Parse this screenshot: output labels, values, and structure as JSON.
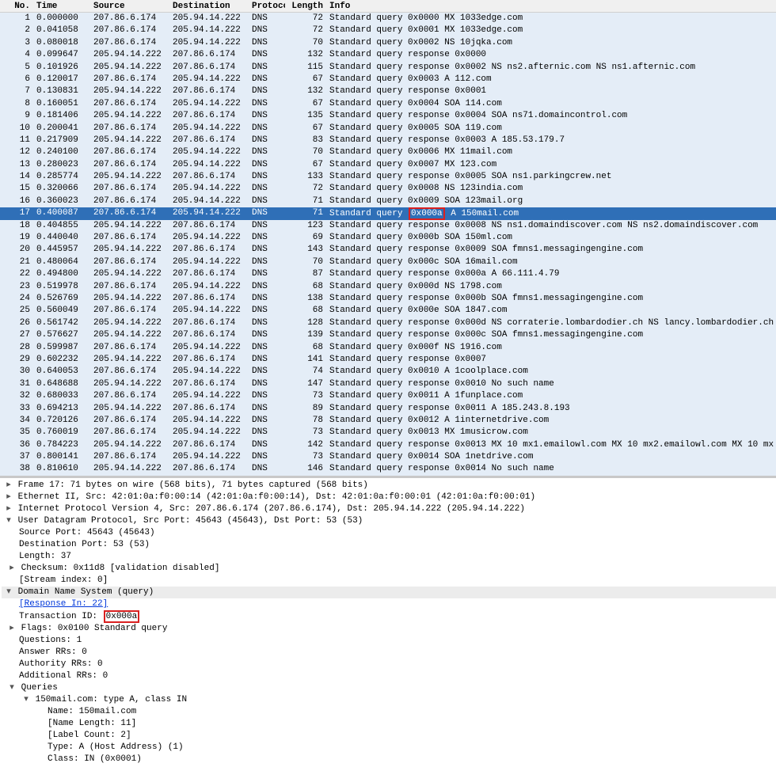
{
  "columns": {
    "no": "No.",
    "time": "Time",
    "src": "Source",
    "dst": "Destination",
    "proto": "Protocol",
    "len": "Length",
    "info": "Info"
  },
  "ip_a": "207.86.6.174",
  "ip_b": "205.94.14.222",
  "bg_colors": {
    "even": "#e4edf7",
    "odd": "#ffffff",
    "selected": "#2f6fb7",
    "selected_text": "#ffffff",
    "header": "#f0f0f0",
    "detail_header": "#ececec",
    "highlight_border": "#d92020",
    "link": "#0037da"
  },
  "packets": [
    {
      "no": 1,
      "time": "0.000000",
      "src": "A",
      "dst": "B",
      "proto": "DNS",
      "len": 72,
      "info": "Standard query 0x0000  MX 1033edge.com",
      "bg": 0
    },
    {
      "no": 2,
      "time": "0.041058",
      "src": "A",
      "dst": "B",
      "proto": "DNS",
      "len": 72,
      "info": "Standard query 0x0001  MX 1033edge.com",
      "bg": 0
    },
    {
      "no": 3,
      "time": "0.080018",
      "src": "A",
      "dst": "B",
      "proto": "DNS",
      "len": 70,
      "info": "Standard query 0x0002  NS 10jqka.com",
      "bg": 0
    },
    {
      "no": 4,
      "time": "0.099647",
      "src": "B",
      "dst": "A",
      "proto": "DNS",
      "len": 132,
      "info": "Standard query response 0x0000",
      "bg": 0
    },
    {
      "no": 5,
      "time": "0.101926",
      "src": "B",
      "dst": "A",
      "proto": "DNS",
      "len": 115,
      "info": "Standard query response 0x0002  NS ns2.afternic.com NS ns1.afternic.com",
      "bg": 0
    },
    {
      "no": 6,
      "time": "0.120017",
      "src": "A",
      "dst": "B",
      "proto": "DNS",
      "len": 67,
      "info": "Standard query 0x0003  A 112.com",
      "bg": 0
    },
    {
      "no": 7,
      "time": "0.130831",
      "src": "B",
      "dst": "A",
      "proto": "DNS",
      "len": 132,
      "info": "Standard query response 0x0001",
      "bg": 0
    },
    {
      "no": 8,
      "time": "0.160051",
      "src": "A",
      "dst": "B",
      "proto": "DNS",
      "len": 67,
      "info": "Standard query 0x0004  SOA 114.com",
      "bg": 0
    },
    {
      "no": 9,
      "time": "0.181406",
      "src": "B",
      "dst": "A",
      "proto": "DNS",
      "len": 135,
      "info": "Standard query response 0x0004  SOA ns71.domaincontrol.com",
      "bg": 0
    },
    {
      "no": 10,
      "time": "0.200041",
      "src": "A",
      "dst": "B",
      "proto": "DNS",
      "len": 67,
      "info": "Standard query 0x0005  SOA 119.com",
      "bg": 0
    },
    {
      "no": 11,
      "time": "0.217909",
      "src": "B",
      "dst": "A",
      "proto": "DNS",
      "len": 83,
      "info": "Standard query response 0x0003  A 185.53.179.7",
      "bg": 0
    },
    {
      "no": 12,
      "time": "0.240100",
      "src": "A",
      "dst": "B",
      "proto": "DNS",
      "len": 70,
      "info": "Standard query 0x0006  MX 11mail.com",
      "bg": 0
    },
    {
      "no": 13,
      "time": "0.280023",
      "src": "A",
      "dst": "B",
      "proto": "DNS",
      "len": 67,
      "info": "Standard query 0x0007  MX 123.com",
      "bg": 0
    },
    {
      "no": 14,
      "time": "0.285774",
      "src": "B",
      "dst": "A",
      "proto": "DNS",
      "len": 133,
      "info": "Standard query response 0x0005  SOA ns1.parkingcrew.net",
      "bg": 0
    },
    {
      "no": 15,
      "time": "0.320066",
      "src": "A",
      "dst": "B",
      "proto": "DNS",
      "len": 72,
      "info": "Standard query 0x0008  NS 123india.com",
      "bg": 0
    },
    {
      "no": 16,
      "time": "0.360023",
      "src": "A",
      "dst": "B",
      "proto": "DNS",
      "len": 71,
      "info": "Standard query 0x0009  SOA 123mail.org",
      "bg": 0
    },
    {
      "no": 17,
      "time": "0.400087",
      "src": "A",
      "dst": "B",
      "proto": "DNS",
      "len": 71,
      "info_pre": "Standard query ",
      "info_hl": "0x000a",
      "info_post": "  A 150mail.com",
      "bg": 0,
      "selected": true
    },
    {
      "no": 18,
      "time": "0.404855",
      "src": "B",
      "dst": "A",
      "proto": "DNS",
      "len": 123,
      "info": "Standard query response 0x0008  NS ns1.domaindiscover.com NS ns2.domaindiscover.com",
      "bg": 0
    },
    {
      "no": 19,
      "time": "0.440040",
      "src": "A",
      "dst": "B",
      "proto": "DNS",
      "len": 69,
      "info": "Standard query 0x000b  SOA 150ml.com",
      "bg": 0
    },
    {
      "no": 20,
      "time": "0.445957",
      "src": "B",
      "dst": "A",
      "proto": "DNS",
      "len": 143,
      "info": "Standard query response 0x0009  SOA fmns1.messagingengine.com",
      "bg": 0
    },
    {
      "no": 21,
      "time": "0.480064",
      "src": "A",
      "dst": "B",
      "proto": "DNS",
      "len": 70,
      "info": "Standard query 0x000c  SOA 16mail.com",
      "bg": 0
    },
    {
      "no": 22,
      "time": "0.494800",
      "src": "B",
      "dst": "A",
      "proto": "DNS",
      "len": 87,
      "info": "Standard query response 0x000a  A 66.111.4.79",
      "bg": 0
    },
    {
      "no": 23,
      "time": "0.519978",
      "src": "A",
      "dst": "B",
      "proto": "DNS",
      "len": 68,
      "info": "Standard query 0x000d  NS 1798.com",
      "bg": 0
    },
    {
      "no": 24,
      "time": "0.526769",
      "src": "B",
      "dst": "A",
      "proto": "DNS",
      "len": 138,
      "info": "Standard query response 0x000b  SOA fmns1.messagingengine.com",
      "bg": 0
    },
    {
      "no": 25,
      "time": "0.560049",
      "src": "A",
      "dst": "B",
      "proto": "DNS",
      "len": 68,
      "info": "Standard query 0x000e  SOA 1847.com",
      "bg": 0
    },
    {
      "no": 26,
      "time": "0.561742",
      "src": "B",
      "dst": "A",
      "proto": "DNS",
      "len": 128,
      "info": "Standard query response 0x000d  NS corraterie.lombardodier.ch NS lancy.lombardodier.ch",
      "bg": 0
    },
    {
      "no": 27,
      "time": "0.576627",
      "src": "B",
      "dst": "A",
      "proto": "DNS",
      "len": 139,
      "info": "Standard query response 0x000c  SOA fmns1.messagingengine.com",
      "bg": 0
    },
    {
      "no": 28,
      "time": "0.599987",
      "src": "A",
      "dst": "B",
      "proto": "DNS",
      "len": 68,
      "info": "Standard query 0x000f  NS 1916.com",
      "bg": 0
    },
    {
      "no": 29,
      "time": "0.602232",
      "src": "B",
      "dst": "A",
      "proto": "DNS",
      "len": 141,
      "info": "Standard query response 0x0007",
      "bg": 0
    },
    {
      "no": 30,
      "time": "0.640053",
      "src": "A",
      "dst": "B",
      "proto": "DNS",
      "len": 74,
      "info": "Standard query 0x0010  A 1coolplace.com",
      "bg": 0
    },
    {
      "no": 31,
      "time": "0.648688",
      "src": "B",
      "dst": "A",
      "proto": "DNS",
      "len": 147,
      "info": "Standard query response 0x0010 No such name",
      "bg": 0
    },
    {
      "no": 32,
      "time": "0.680033",
      "src": "A",
      "dst": "B",
      "proto": "DNS",
      "len": 73,
      "info": "Standard query 0x0011  A 1funplace.com",
      "bg": 0
    },
    {
      "no": 33,
      "time": "0.694213",
      "src": "B",
      "dst": "A",
      "proto": "DNS",
      "len": 89,
      "info": "Standard query response 0x0011  A 185.243.8.193",
      "bg": 0
    },
    {
      "no": 34,
      "time": "0.720126",
      "src": "A",
      "dst": "B",
      "proto": "DNS",
      "len": 78,
      "info": "Standard query 0x0012  A 1internetdrive.com",
      "bg": 0
    },
    {
      "no": 35,
      "time": "0.760019",
      "src": "A",
      "dst": "B",
      "proto": "DNS",
      "len": 73,
      "info": "Standard query 0x0013  MX 1musicrow.com",
      "bg": 0
    },
    {
      "no": 36,
      "time": "0.784223",
      "src": "B",
      "dst": "A",
      "proto": "DNS",
      "len": 142,
      "info": "Standard query response 0x0013  MX 10 mx1.emailowl.com MX 10 mx2.emailowl.com MX 10 mx",
      "bg": 0
    },
    {
      "no": 37,
      "time": "0.800141",
      "src": "A",
      "dst": "B",
      "proto": "DNS",
      "len": 73,
      "info": "Standard query 0x0014  SOA 1netdrive.com",
      "bg": 0
    },
    {
      "no": 38,
      "time": "0.810610",
      "src": "B",
      "dst": "A",
      "proto": "DNS",
      "len": 146,
      "info": "Standard query response 0x0014 No such name",
      "bg": 0
    }
  ],
  "details": {
    "frame": "Frame 17: 71 bytes on wire (568 bits), 71 bytes captured (568 bits)",
    "eth": "Ethernet II, Src: 42:01:0a:f0:00:14 (42:01:0a:f0:00:14), Dst: 42:01:0a:f0:00:01 (42:01:0a:f0:00:01)",
    "ip": "Internet Protocol Version 4, Src: 207.86.6.174 (207.86.6.174), Dst: 205.94.14.222 (205.94.14.222)",
    "udp": "User Datagram Protocol, Src Port: 45643 (45643), Dst Port: 53 (53)",
    "udp_src": "Source Port: 45643 (45643)",
    "udp_dst": "Destination Port: 53 (53)",
    "udp_len": "Length: 37",
    "udp_cksum": "Checksum: 0x11d8 [validation disabled]",
    "udp_stream": "[Stream index: 0]",
    "dns": "Domain Name System (query)",
    "dns_resp_in_label": "[Response In: ",
    "dns_resp_in_val": "22",
    "dns_resp_in_close": "]",
    "dns_txid_label": "Transaction ID: ",
    "dns_txid_val": "0x000a",
    "dns_flags": "Flags: 0x0100 Standard query",
    "dns_questions": "Questions: 1",
    "dns_answer": "Answer RRs: 0",
    "dns_auth": "Authority RRs: 0",
    "dns_addl": "Additional RRs: 0",
    "dns_queries": "Queries",
    "q_line": "150mail.com: type A, class IN",
    "q_name": "Name: 150mail.com",
    "q_namelen": "[Name Length: 11]",
    "q_labelcount": "[Label Count: 2]",
    "q_type": "Type: A (Host Address) (1)",
    "q_class": "Class: IN (0x0001)"
  }
}
